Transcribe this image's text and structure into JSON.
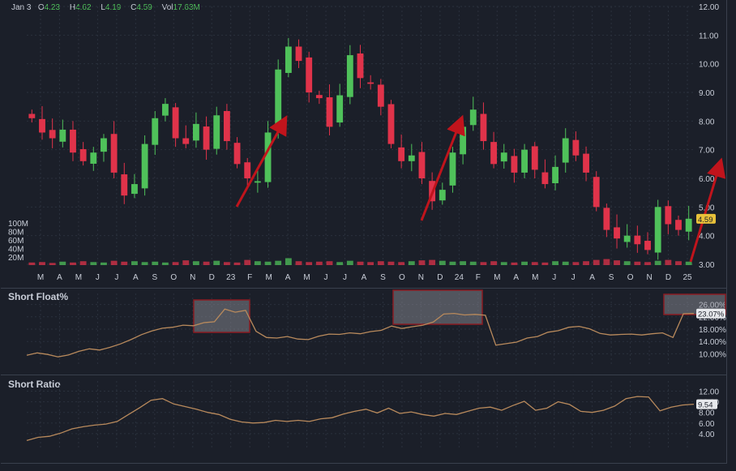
{
  "header": {
    "date": "Jan 3",
    "open_label": "O",
    "open": "4.23",
    "high_label": "H",
    "high": "4.62",
    "low_label": "L",
    "low": "4.19",
    "close_label": "C",
    "close": "4.59",
    "vol_label": "Vol",
    "vol": "17.63M"
  },
  "colors": {
    "up": "#4fc15a",
    "down": "#e0334a",
    "line": "#b98a5c",
    "arrow": "#c0141c",
    "last_price_bg": "#e8c13a"
  },
  "chart_data": [
    {
      "type": "candlestick",
      "panel": "price",
      "x_ticks": [
        "M",
        "A",
        "M",
        "J",
        "J",
        "A",
        "S",
        "O",
        "N",
        "D",
        "23",
        "F",
        "M",
        "A",
        "M",
        "J",
        "J",
        "A",
        "S",
        "O",
        "N",
        "D",
        "24",
        "F",
        "M",
        "A",
        "M",
        "J",
        "J",
        "A",
        "S",
        "O",
        "N",
        "D",
        "25"
      ],
      "y_ticks": [
        "3.00",
        "4.00",
        "5.00",
        "6.00",
        "7.00",
        "8.00",
        "9.00",
        "10.00",
        "11.00",
        "12.00"
      ],
      "ylim": [
        3,
        12
      ],
      "last_price": "4.59",
      "volume_ticks": [
        "20M",
        "40M",
        "60M",
        "80M",
        "100M"
      ],
      "closes": [
        8.1,
        7.6,
        7.4,
        7.7,
        6.9,
        6.6,
        6.9,
        7.4,
        6.2,
        5.4,
        5.8,
        7.2,
        8.1,
        8.6,
        7.4,
        7.2,
        7.9,
        7.0,
        8.2,
        7.3,
        6.5,
        6.0,
        5.9,
        7.6,
        9.8,
        10.6,
        10.1,
        9.0,
        8.8,
        7.8,
        8.9,
        10.3,
        9.5,
        9.3,
        8.5,
        7.2,
        6.6,
        6.8,
        6.0,
        5.2,
        5.6,
        6.9,
        7.8,
        8.4,
        7.3,
        6.5,
        6.9,
        6.2,
        7.0,
        6.3,
        5.8,
        6.4,
        7.4,
        6.8,
        6.2,
        5.0,
        4.2,
        3.9,
        4.0,
        3.7,
        3.5,
        5.0,
        4.4,
        4.2,
        4.59
      ],
      "volumes": [
        6,
        7,
        5,
        8,
        6,
        9,
        7,
        6,
        10,
        8,
        9,
        7,
        8,
        6,
        7,
        11,
        9,
        8,
        10,
        7,
        6,
        12,
        9,
        8,
        10,
        16,
        9,
        7,
        8,
        9,
        7,
        10,
        8,
        7,
        9,
        8,
        7,
        9,
        11,
        12,
        10,
        8,
        9,
        8,
        7,
        9,
        7,
        6,
        8,
        7,
        6,
        9,
        8,
        7,
        9,
        12,
        14,
        11,
        9,
        8,
        7,
        10,
        12,
        9,
        8
      ]
    },
    {
      "type": "line",
      "panel": "short_float",
      "title": "Short Float%",
      "y_ticks": [
        "10.00%",
        "14.00%",
        "18.00%",
        "22.00%",
        "26.00%"
      ],
      "ylim": [
        8,
        28
      ],
      "last_value": "23.07%",
      "values": [
        9.5,
        10.3,
        9.8,
        9.0,
        9.6,
        10.8,
        11.6,
        11.2,
        12.1,
        13.2,
        14.6,
        16.2,
        17.4,
        18.3,
        18.6,
        19.3,
        19.1,
        20.1,
        20.4,
        24.5,
        23.5,
        24.1,
        17.3,
        15.3,
        15.1,
        15.6,
        14.8,
        14.6,
        15.7,
        16.4,
        16.3,
        16.8,
        16.5,
        17.2,
        17.6,
        19.0,
        18.2,
        18.8,
        19.3,
        20.3,
        22.9,
        23.1,
        22.6,
        22.8,
        22.5,
        12.8,
        13.3,
        13.8,
        15.1,
        15.6,
        17.0,
        17.5,
        18.6,
        18.9,
        18.1,
        16.6,
        16.1,
        16.3,
        16.4,
        16.1,
        16.5,
        16.8,
        15.3,
        23.0,
        23.07
      ]
    },
    {
      "type": "line",
      "panel": "short_ratio",
      "title": "Short Ratio",
      "y_ticks": [
        "4.00",
        "6.00",
        "8.00",
        "10.00",
        "12.00"
      ],
      "ylim": [
        2,
        13
      ],
      "last_value": "9.54",
      "values": [
        2.7,
        3.3,
        3.5,
        4.1,
        4.9,
        5.3,
        5.6,
        5.8,
        6.3,
        7.6,
        8.9,
        10.3,
        10.6,
        9.6,
        9.1,
        8.6,
        8.0,
        7.6,
        6.7,
        6.2,
        6.0,
        6.1,
        6.5,
        6.3,
        6.5,
        6.3,
        6.8,
        7.0,
        7.7,
        8.2,
        8.6,
        7.9,
        8.8,
        7.8,
        8.1,
        7.6,
        7.3,
        7.8,
        7.6,
        8.2,
        8.8,
        9.0,
        8.4,
        9.3,
        10.1,
        8.4,
        8.8,
        10.0,
        9.5,
        8.2,
        8.0,
        8.4,
        9.2,
        10.6,
        11.0,
        10.9,
        8.3,
        9.0,
        9.4,
        9.54
      ]
    }
  ]
}
